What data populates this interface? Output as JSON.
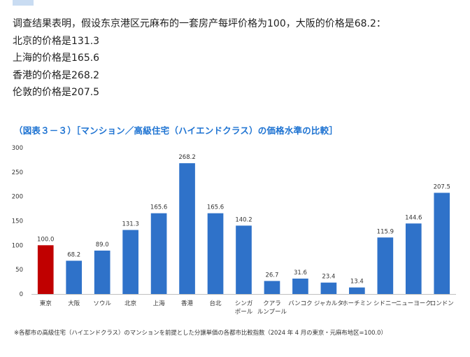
{
  "intro": {
    "lines": [
      "调查结果表明，假设东京港区元麻布的一套房产每坪价格为100，大阪的价格是68.2：",
      "北京的价格是131.3",
      "上海的价格是165.6",
      "香港的价格是268.2",
      "伦敦的价格是207.5"
    ]
  },
  "chart_data": {
    "type": "bar",
    "title": "（図表３－３）［マンション／高級住宅（ハイエンドクラス）の価格水準の比較］",
    "categories": [
      [
        "東京"
      ],
      [
        "大阪"
      ],
      [
        "ソウル"
      ],
      [
        "北京"
      ],
      [
        "上海"
      ],
      [
        "香港"
      ],
      [
        "台北"
      ],
      [
        "シンガ",
        "ポール"
      ],
      [
        "クアラ",
        "ルンプール"
      ],
      [
        "バンコク"
      ],
      [
        "ジャカルタ"
      ],
      [
        "ホーチミン"
      ],
      [
        "シドニー"
      ],
      [
        "ニューヨーク"
      ],
      [
        "ロンドン"
      ]
    ],
    "values": [
      100.0,
      68.2,
      89.0,
      131.3,
      165.6,
      268.2,
      165.6,
      140.2,
      26.7,
      31.6,
      23.4,
      13.4,
      115.9,
      144.6,
      207.5
    ],
    "value_labels": [
      "100.0",
      "68.2",
      "89.0",
      "131.3",
      "165.6",
      "268.2",
      "165.6",
      "140.2",
      "26.7",
      "31.6",
      "23.4",
      "13.4",
      "115.9",
      "144.6",
      "207.5"
    ],
    "ylim": [
      0,
      300
    ],
    "yticks": [
      0,
      50,
      100,
      150,
      200,
      250,
      300
    ],
    "grid": false,
    "colors": {
      "highlight": "#c00000",
      "default": "#2f72c9"
    },
    "highlight_index": 0,
    "footnote": "※各都市の高級住宅（ハイエンドクラス）のマンションを前提とした分譲単価の各都市比較指数（2024 年 4 月の東京・元麻布地区=100.0）"
  }
}
